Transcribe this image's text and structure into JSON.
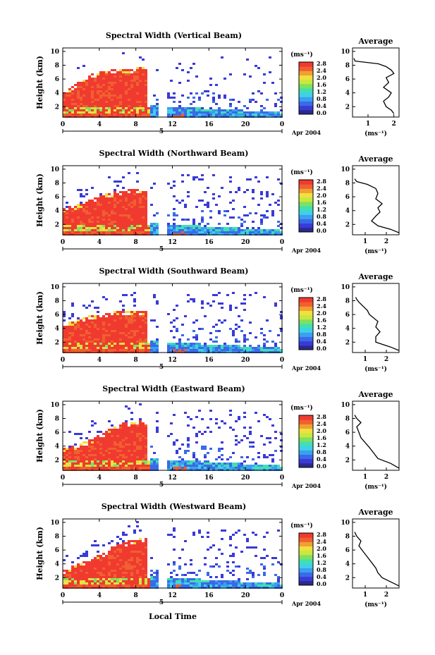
{
  "figure": {
    "x_axis_title": "Local Time",
    "day_label": "5",
    "date_label": "Apr 2004",
    "panel_y_label": "Height (km)",
    "colorbar_unit": "(ms⁻¹)",
    "colorbar_ticks": [
      "0.0",
      "0.4",
      "0.8",
      "1.2",
      "1.6",
      "2.0",
      "2.4",
      "2.8"
    ],
    "avg_title": "Average",
    "avg_x_label": "(ms⁻¹)"
  },
  "colors": {
    "scale": [
      "#2a2a8a",
      "#3a3ad8",
      "#3a6ae8",
      "#3aa0f0",
      "#40d0e8",
      "#40e0b0",
      "#80e060",
      "#c8e840",
      "#f0e040",
      "#f0a030",
      "#f06030",
      "#f03a30"
    ]
  },
  "chart_data": [
    {
      "type": "heatmap",
      "title": "Spectral Width (Vertical Beam)",
      "ylabel": "Height (km)",
      "x_ticks": [
        "0",
        "4",
        "8",
        "12",
        "16",
        "20",
        "0"
      ],
      "y_ticks": [
        "2",
        "4",
        "6",
        "8",
        "10"
      ],
      "xlim": [
        0,
        24
      ],
      "ylim": [
        0.5,
        10.5
      ],
      "colorbar_range": [
        0.0,
        2.8
      ],
      "data_gap_hours": [
        10.4,
        11.2
      ],
      "ridge_heights_km": [
        [
          0,
          4.2
        ],
        [
          2,
          6.2
        ],
        [
          4,
          7.4
        ],
        [
          6,
          7.6
        ],
        [
          8.4,
          7.8
        ]
      ],
      "profile": {
        "title": "Average",
        "x_ticks": [
          "1",
          "2"
        ],
        "y_ticks": [
          "2",
          "4",
          "6",
          "8",
          "10"
        ],
        "xlim": [
          0.4,
          2.2
        ],
        "ylim": [
          0.5,
          10.5
        ],
        "x": [
          2.0,
          1.9,
          1.7,
          1.6,
          1.8,
          1.9,
          1.6,
          1.8,
          1.7,
          2.0,
          1.9,
          1.7,
          1.4,
          0.5,
          0.45
        ],
        "y": [
          1.0,
          1.5,
          2.0,
          2.8,
          3.4,
          4.0,
          4.8,
          5.5,
          6.2,
          6.8,
          7.3,
          7.8,
          8.2,
          8.6,
          9.0
        ]
      }
    },
    {
      "type": "heatmap",
      "title": "Spectral Width (Northward Beam)",
      "ylabel": "Height (km)",
      "x_ticks": [
        "0",
        "4",
        "8",
        "12",
        "16",
        "20",
        "0"
      ],
      "y_ticks": [
        "2",
        "4",
        "6",
        "8",
        "10"
      ],
      "xlim": [
        0,
        24
      ],
      "ylim": [
        0.5,
        10.5
      ],
      "colorbar_range": [
        0.0,
        2.8
      ],
      "data_gap_hours": [
        10.4,
        11.2
      ],
      "ridge_heights_km": [
        [
          0,
          4.5
        ],
        [
          2,
          5.2
        ],
        [
          4,
          6.3
        ],
        [
          6,
          7.0
        ],
        [
          8.6,
          7.4
        ]
      ],
      "profile": {
        "title": "Average",
        "x_ticks": [
          "1",
          "2"
        ],
        "y_ticks": [
          "2",
          "4",
          "6",
          "8",
          "10"
        ],
        "xlim": [
          0.4,
          2.6
        ],
        "ylim": [
          0.5,
          10.5
        ],
        "x": [
          2.6,
          2.2,
          1.6,
          1.3,
          1.5,
          1.7,
          1.6,
          1.8,
          1.5,
          1.6,
          1.5,
          1.1,
          0.6,
          0.5
        ],
        "y": [
          0.8,
          1.3,
          1.8,
          2.5,
          3.2,
          3.8,
          4.4,
          5.0,
          5.7,
          6.5,
          7.2,
          7.8,
          8.2,
          8.6
        ]
      }
    },
    {
      "type": "heatmap",
      "title": "Spectral Width (Southward Beam)",
      "ylabel": "Height (km)",
      "x_ticks": [
        "0",
        "4",
        "8",
        "12",
        "16",
        "20",
        "0"
      ],
      "y_ticks": [
        "2",
        "4",
        "6",
        "8",
        "10"
      ],
      "xlim": [
        0,
        24
      ],
      "ylim": [
        0.5,
        10.5
      ],
      "colorbar_range": [
        0.0,
        2.8
      ],
      "data_gap_hours": [
        10.4,
        11.2
      ],
      "ridge_heights_km": [
        [
          0,
          5.0
        ],
        [
          2,
          5.6
        ],
        [
          4,
          6.4
        ],
        [
          6,
          6.6
        ],
        [
          7.6,
          6.8
        ]
      ],
      "profile": {
        "title": "Average",
        "x_ticks": [
          "1",
          "2"
        ],
        "y_ticks": [
          "2",
          "4",
          "6",
          "8",
          "10"
        ],
        "xlim": [
          0.4,
          2.6
        ],
        "ylim": [
          0.5,
          10.5
        ],
        "x": [
          2.6,
          2.2,
          1.5,
          1.5,
          1.7,
          1.5,
          1.6,
          1.4,
          1.2,
          1.1,
          0.9,
          0.7,
          0.6,
          0.55
        ],
        "y": [
          0.8,
          1.3,
          2.0,
          2.8,
          3.5,
          4.2,
          5.0,
          5.5,
          6.0,
          6.6,
          7.2,
          7.8,
          8.2,
          8.5
        ]
      }
    },
    {
      "type": "heatmap",
      "title": "Spectral Width (Eastward Beam)",
      "ylabel": "Height (km)",
      "x_ticks": [
        "0",
        "4",
        "8",
        "12",
        "16",
        "20",
        "0"
      ],
      "y_ticks": [
        "2",
        "4",
        "6",
        "8",
        "10"
      ],
      "xlim": [
        0,
        24
      ],
      "ylim": [
        0.5,
        10.5
      ],
      "colorbar_range": [
        0.0,
        2.8
      ],
      "data_gap_hours": [
        10.4,
        11.2
      ],
      "ridge_heights_km": [
        [
          0,
          3.8
        ],
        [
          2,
          4.6
        ],
        [
          4,
          5.8
        ],
        [
          6,
          7.4
        ],
        [
          8.4,
          7.8
        ]
      ],
      "profile": {
        "title": "Average",
        "x_ticks": [
          "1",
          "2"
        ],
        "y_ticks": [
          "2",
          "4",
          "6",
          "8",
          "10"
        ],
        "xlim": [
          0.4,
          2.6
        ],
        "ylim": [
          0.5,
          10.5
        ],
        "x": [
          2.6,
          2.2,
          1.6,
          1.4,
          1.2,
          1.0,
          0.8,
          0.7,
          0.6,
          0.8,
          0.6,
          0.5
        ],
        "y": [
          0.8,
          1.5,
          2.2,
          3.0,
          3.8,
          4.5,
          5.2,
          6.0,
          6.8,
          7.4,
          8.0,
          8.5
        ]
      }
    },
    {
      "type": "heatmap",
      "title": "Spectral Width (Westward Beam)",
      "ylabel": "Height (km)",
      "x_ticks": [
        "0",
        "4",
        "8",
        "12",
        "16",
        "20",
        "0"
      ],
      "y_ticks": [
        "2",
        "4",
        "6",
        "8",
        "10"
      ],
      "xlim": [
        0,
        24
      ],
      "ylim": [
        0.5,
        10.5
      ],
      "colorbar_range": [
        0.0,
        2.8
      ],
      "data_gap_hours": [
        10.4,
        11.2
      ],
      "ridge_heights_km": [
        [
          0,
          3.4
        ],
        [
          2,
          4.4
        ],
        [
          4,
          5.6
        ],
        [
          6,
          7.2
        ],
        [
          8.4,
          7.8
        ]
      ],
      "profile": {
        "title": "Average",
        "x_ticks": [
          "1",
          "2"
        ],
        "y_ticks": [
          "2",
          "4",
          "6",
          "8",
          "10"
        ],
        "xlim": [
          0.4,
          2.6
        ],
        "ylim": [
          0.5,
          10.5
        ],
        "x": [
          2.6,
          2.2,
          1.8,
          1.6,
          1.5,
          1.3,
          1.1,
          0.9,
          0.7,
          0.8,
          0.6,
          0.5
        ],
        "y": [
          0.8,
          1.4,
          2.0,
          2.7,
          3.4,
          4.2,
          5.0,
          5.8,
          6.6,
          7.3,
          8.0,
          8.6
        ]
      }
    }
  ]
}
